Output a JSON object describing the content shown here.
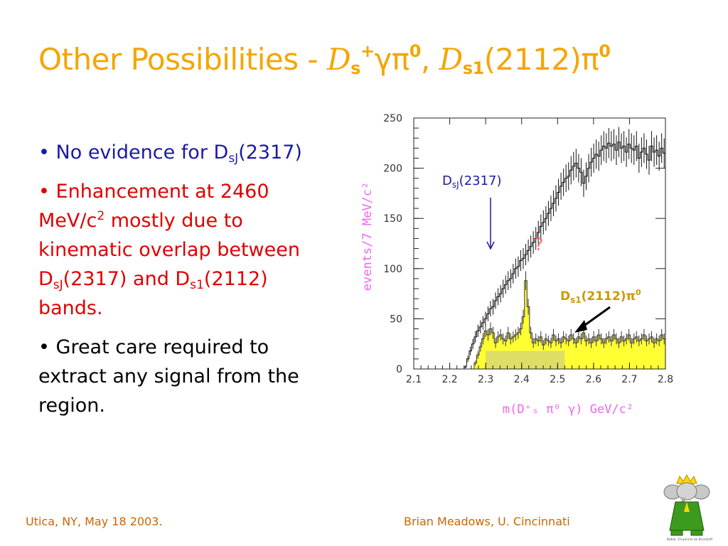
{
  "title": {
    "prefix": "Other Possibilities - ",
    "d1": "D",
    "d1_sub": "s",
    "d1_sup": "+",
    "greek1": "γπ",
    "sup0a": "0",
    "comma": ", ",
    "d2": "D",
    "d2_sub": "s1",
    "mass": "(2112)",
    "greek2": "π",
    "sup0b": "0"
  },
  "bullets": [
    {
      "dot": "• ",
      "t1": "No evidence for D",
      "s1": "sJ",
      "t2": "(2317)"
    },
    {
      "dot": "• ",
      "t1": "Enhancement at 2460 MeV/c",
      "sup": "2",
      "t2": " mostly due to kinematic overlap between D",
      "s1": "sJ",
      "t3": "(2317) and D",
      "s2": "s1",
      "t4": "(2112) bands."
    },
    {
      "dot": "• ",
      "t1": "Great care required to extract any signal from the region."
    }
  ],
  "footer": {
    "left": "Utica, NY, May 18 2003.",
    "right": "Brian Meadows, U. Cincinnati"
  },
  "colors": {
    "title": "#f5a500",
    "bullet1": "#1a1aa6",
    "bullet2": "#e00000",
    "footer": "#cc6600",
    "axis_titles": "#ee66ee",
    "fill_yellow": "#ffff33",
    "fill_band": "#dede66"
  },
  "logo": {
    "name": "babar-elephant-logo",
    "caption": "Babar ©Laurent de Brunhoff"
  },
  "chart_data": {
    "type": "histogram",
    "xlabel": "m(D⁺ₛ π⁰ γ) GeV/c²",
    "ylabel": "events/7 MeV/c²",
    "xlim": [
      2.1,
      2.8
    ],
    "ylim": [
      0,
      250
    ],
    "x_ticks": [
      "2.1",
      "2.2",
      "2.3",
      "2.4",
      "2.5",
      "2.6",
      "2.7",
      "2.8"
    ],
    "y_ticks": [
      "0",
      "50",
      "100",
      "150",
      "200",
      "250"
    ],
    "bin_width": 0.007,
    "bin_start": 2.1,
    "series": [
      {
        "values": [
          0,
          0,
          0,
          0,
          0,
          0,
          0,
          0,
          0,
          0,
          0,
          0,
          0,
          0,
          0,
          0,
          0,
          0,
          0,
          0,
          2,
          10,
          18,
          25,
          32,
          38,
          42,
          46,
          50,
          55,
          60,
          62,
          68,
          72,
          75,
          80,
          84,
          88,
          90,
          95,
          100,
          102,
          108,
          110,
          114,
          118,
          122,
          126,
          130,
          136,
          142,
          146,
          150,
          155,
          160,
          165,
          170,
          176,
          182,
          186,
          190,
          192,
          198,
          202,
          205,
          200,
          196,
          185,
          192,
          200,
          206,
          210,
          214,
          212,
          218,
          222,
          220,
          225,
          222,
          224,
          218,
          226,
          220,
          222,
          216,
          224,
          220,
          218,
          222,
          210,
          216,
          220,
          214,
          208,
          222,
          216,
          218,
          212,
          220,
          215
        ]
      },
      {
        "values": [
          0,
          0,
          0,
          0,
          0,
          0,
          0,
          0,
          0,
          0,
          0,
          0,
          0,
          0,
          0,
          0,
          0,
          0,
          0,
          0,
          0,
          0,
          0,
          0,
          6,
          14,
          22,
          30,
          38,
          34,
          40,
          36,
          26,
          32,
          34,
          30,
          28,
          36,
          30,
          32,
          34,
          36,
          40,
          52,
          88,
          62,
          36,
          26,
          30,
          28,
          32,
          24,
          30,
          28,
          26,
          34,
          28,
          30,
          26,
          32,
          30,
          28,
          34,
          30,
          26,
          32,
          30,
          36,
          28,
          30,
          26,
          32,
          28,
          34,
          30,
          26,
          30,
          32,
          28,
          34,
          30,
          26,
          32,
          28,
          30,
          34,
          26,
          30,
          32,
          28,
          30,
          34,
          28,
          30,
          32,
          26,
          30,
          28,
          34,
          30
        ]
      }
    ],
    "band": {
      "x_range": [
        2.3,
        2.52
      ],
      "y": 18
    },
    "annotations": [
      {
        "text": "D",
        "sub": "sJ",
        "tail": "(2317)",
        "color": "#1a1aa6",
        "at_x": 2.4
      },
      {
        "text": "?",
        "color": "#ff6666",
        "at_x": 2.46
      },
      {
        "text": "D",
        "sub": "s1",
        "tail": "(2112)π",
        "sup": "0",
        "color": "#cc9900",
        "at_x": 2.55
      }
    ]
  }
}
